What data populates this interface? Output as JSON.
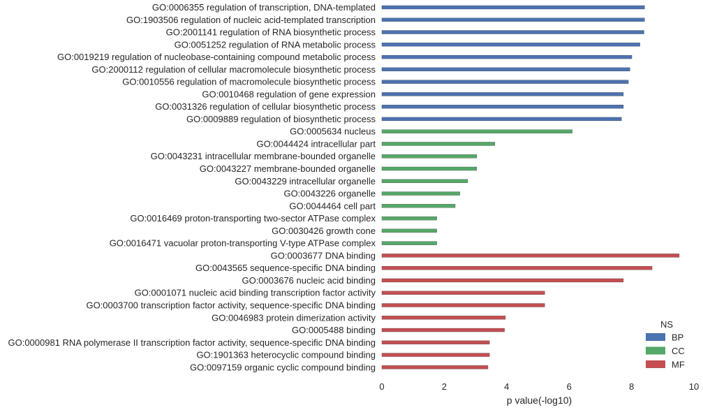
{
  "chart_data": {
    "type": "bar",
    "orientation": "horizontal",
    "xlabel": "p value(-log10)",
    "ylabel": "",
    "xlim": [
      0,
      10
    ],
    "xticks": [
      "0",
      "2",
      "4",
      "6",
      "8",
      "10"
    ],
    "grid": false,
    "legend": {
      "title": "NS",
      "placement": "bottom-right",
      "entries": [
        {
          "name": "BP",
          "color": "#4c72b0"
        },
        {
          "name": "CC",
          "color": "#55a868"
        },
        {
          "name": "MF",
          "color": "#c44e52"
        }
      ]
    },
    "colors": {
      "BP": "#4c72b0",
      "CC": "#55a868",
      "MF": "#c44e52"
    },
    "categories": [
      "GO:0006355 regulation of transcription, DNA-templated",
      "GO:1903506 regulation of nucleic acid-templated transcription",
      "GO:2001141 regulation of RNA biosynthetic process",
      "GO:0051252 regulation of RNA metabolic process",
      "GO:0019219 regulation of nucleobase-containing compound metabolic process",
      "GO:2000112 regulation of cellular macromolecule biosynthetic process",
      "GO:0010556 regulation of macromolecule biosynthetic process",
      "GO:0010468 regulation of gene expression",
      "GO:0031326 regulation of cellular biosynthetic process",
      "GO:0009889 regulation of biosynthetic process",
      "GO:0005634 nucleus",
      "GO:0044424 intracellular part",
      "GO:0043231 intracellular membrane-bounded organelle",
      "GO:0043227 membrane-bounded organelle",
      "GO:0043229 intracellular organelle",
      "GO:0043226 organelle",
      "GO:0044464 cell part",
      "GO:0016469 proton-transporting two-sector ATPase complex",
      "GO:0030426 growth cone",
      "GO:0016471 vacuolar proton-transporting V-type ATPase complex",
      "GO:0003677 DNA binding",
      "GO:0043565 sequence-specific DNA binding",
      "GO:0003676 nucleic acid binding",
      "GO:0001071 nucleic acid binding transcription factor activity",
      "GO:0003700 transcription factor activity, sequence-specific DNA binding",
      "GO:0046983 protein dimerization activity",
      "GO:0005488 binding",
      "GO:0000981 RNA polymerase II transcription factor activity, sequence-specific DNA binding",
      "GO:1901363 heterocyclic compound binding",
      "GO:0097159 organic cyclic compound binding"
    ],
    "namespace": [
      "BP",
      "BP",
      "BP",
      "BP",
      "BP",
      "BP",
      "BP",
      "BP",
      "BP",
      "BP",
      "CC",
      "CC",
      "CC",
      "CC",
      "CC",
      "CC",
      "CC",
      "CC",
      "CC",
      "CC",
      "MF",
      "MF",
      "MF",
      "MF",
      "MF",
      "MF",
      "MF",
      "MF",
      "MF",
      "MF"
    ],
    "values": [
      8.42,
      8.42,
      8.4,
      8.27,
      8.01,
      7.95,
      7.9,
      7.74,
      7.74,
      7.68,
      6.1,
      3.62,
      3.04,
      3.04,
      2.75,
      2.5,
      2.35,
      1.76,
      1.76,
      1.76,
      9.53,
      8.66,
      7.74,
      5.22,
      5.22,
      3.96,
      3.93,
      3.45,
      3.45,
      3.4
    ]
  }
}
